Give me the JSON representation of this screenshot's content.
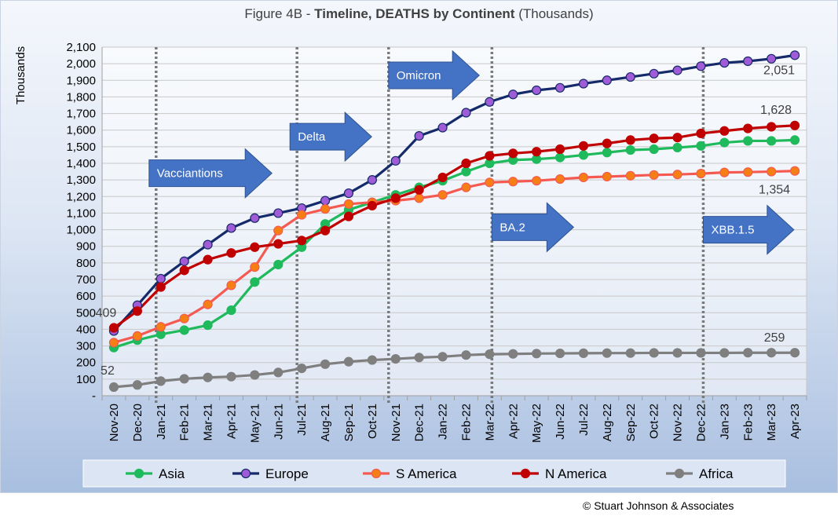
{
  "title": {
    "prefix": "Figure 4B - ",
    "bold": "Timeline, DEATHS by Continent",
    "suffix": " (Thousands)"
  },
  "copyright": "© Stuart Johnson & Associates",
  "chart_data": {
    "type": "line",
    "title": "Figure 4B - Timeline, DEATHS by Continent (Thousands)",
    "ylabel": "Thousands",
    "xlabel": "",
    "ylim": [
      0,
      2100
    ],
    "yticks": [
      {
        "value": 0,
        "label": "-"
      },
      {
        "value": 100,
        "label": "100"
      },
      {
        "value": 200,
        "label": "200"
      },
      {
        "value": 300,
        "label": "300"
      },
      {
        "value": 400,
        "label": "400"
      },
      {
        "value": 500,
        "label": "500"
      },
      {
        "value": 600,
        "label": "600"
      },
      {
        "value": 700,
        "label": "700"
      },
      {
        "value": 800,
        "label": "800"
      },
      {
        "value": 900,
        "label": "900"
      },
      {
        "value": 1000,
        "label": "1,000"
      },
      {
        "value": 1100,
        "label": "1,100"
      },
      {
        "value": 1200,
        "label": "1,200"
      },
      {
        "value": 1300,
        "label": "1,300"
      },
      {
        "value": 1400,
        "label": "1,400"
      },
      {
        "value": 1500,
        "label": "1,500"
      },
      {
        "value": 1600,
        "label": "1,600"
      },
      {
        "value": 1700,
        "label": "1,700"
      },
      {
        "value": 1800,
        "label": "1,800"
      },
      {
        "value": 1900,
        "label": "1,900"
      },
      {
        "value": 2000,
        "label": "2,000"
      },
      {
        "value": 2100,
        "label": "2,100"
      }
    ],
    "categories": [
      "Nov-20",
      "Dec-20",
      "Jan-21",
      "Feb-21",
      "Mar-21",
      "Apr-21",
      "May-21",
      "Jun-21",
      "Jul-21",
      "Aug-21",
      "Sep-21",
      "Oct-21",
      "Nov-21",
      "Dec-21",
      "Jan-22",
      "Feb-22",
      "Mar-22",
      "Apr-22",
      "May-22",
      "Jun-22",
      "Jul-22",
      "Aug-22",
      "Sep-22",
      "Oct-22",
      "Nov-22",
      "Dec-22",
      "Jan-23",
      "Feb-23",
      "Mar-23",
      "Apr-23"
    ],
    "series": [
      {
        "name": "Asia",
        "color": "#1fba5c",
        "marker": "#1fba5c",
        "values": [
          290,
          335,
          370,
          395,
          425,
          515,
          685,
          790,
          895,
          1035,
          1120,
          1165,
          1210,
          1255,
          1295,
          1350,
          1400,
          1420,
          1425,
          1435,
          1450,
          1465,
          1480,
          1485,
          1495,
          1505,
          1525,
          1535,
          1535,
          1540
        ]
      },
      {
        "name": "Europe",
        "color": "#152a6a",
        "marker": "#a05cd6",
        "values": [
          390,
          545,
          705,
          810,
          910,
          1010,
          1070,
          1100,
          1130,
          1175,
          1220,
          1300,
          1415,
          1565,
          1615,
          1705,
          1770,
          1815,
          1840,
          1855,
          1880,
          1900,
          1920,
          1940,
          1960,
          1985,
          2005,
          2015,
          2030,
          2051
        ]
      },
      {
        "name": "S America",
        "color": "#f55a52",
        "marker": "#f57e15",
        "values": [
          320,
          360,
          415,
          465,
          550,
          665,
          775,
          995,
          1090,
          1125,
          1155,
          1165,
          1175,
          1190,
          1210,
          1255,
          1285,
          1290,
          1295,
          1305,
          1315,
          1320,
          1325,
          1330,
          1333,
          1338,
          1345,
          1347,
          1350,
          1354
        ]
      },
      {
        "name": "N America",
        "color": "#c00000",
        "marker": "#c00000",
        "values": [
          409,
          510,
          655,
          755,
          820,
          860,
          895,
          915,
          935,
          995,
          1080,
          1145,
          1190,
          1240,
          1315,
          1400,
          1445,
          1460,
          1470,
          1485,
          1505,
          1520,
          1540,
          1550,
          1555,
          1580,
          1595,
          1610,
          1620,
          1628
        ]
      },
      {
        "name": "Africa",
        "color": "#7f7f7f",
        "marker": "#7f7f7f",
        "values": [
          52,
          65,
          88,
          102,
          110,
          115,
          125,
          140,
          165,
          190,
          205,
          215,
          222,
          230,
          235,
          245,
          250,
          252,
          254,
          255,
          256,
          257,
          257,
          258,
          258,
          258,
          258,
          259,
          259,
          259
        ]
      }
    ],
    "data_labels": [
      {
        "series": "N America",
        "index": 0,
        "text": "409"
      },
      {
        "series": "Africa",
        "index": 0,
        "text": "52"
      },
      {
        "series": "Europe",
        "index": 29,
        "text": "2,051"
      },
      {
        "series": "N America",
        "index": 29,
        "text": "1,628"
      },
      {
        "series": "S America",
        "index": 29,
        "text": "1,354"
      },
      {
        "series": "Africa",
        "index": 29,
        "text": "259"
      }
    ],
    "event_lines": [
      {
        "label": "Vacciantions",
        "line_index": 1.8,
        "arrow_index": 1.5,
        "arrow_value": 1340
      },
      {
        "label": "Delta",
        "line_index": 7.8,
        "arrow_index": 7.5,
        "arrow_value": 1560
      },
      {
        "label": "Omicron",
        "line_index": 11.7,
        "arrow_index": 11.7,
        "arrow_value": 1930
      },
      {
        "label": "BA.2",
        "line_index": 16.1,
        "arrow_index": 16.1,
        "arrow_value": 1015
      },
      {
        "label": "XBB.1.5",
        "line_index": 25.1,
        "arrow_index": 25.1,
        "arrow_value": 1000
      }
    ],
    "legend": "bottom",
    "grid": true
  }
}
